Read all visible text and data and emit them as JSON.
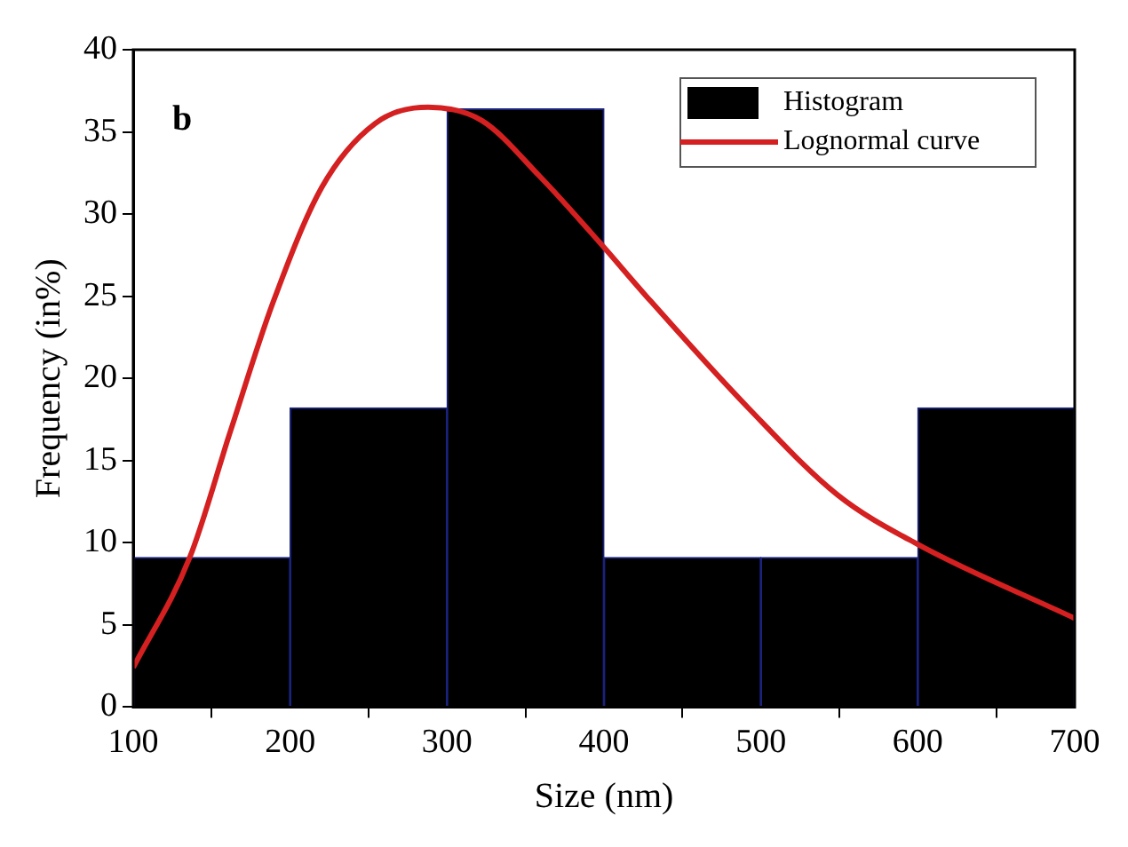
{
  "chart_data": {
    "type": "histogram",
    "xlabel": "Size (nm)",
    "ylabel": "Frequency (in%)",
    "annotations": [
      "b"
    ],
    "bins": [
      100,
      200,
      300,
      400,
      500,
      600,
      700
    ],
    "series": [
      {
        "name": "Histogram",
        "color": "#000000",
        "values": [
          9.1,
          18.2,
          36.4,
          9.1,
          9.1,
          18.2
        ]
      },
      {
        "name": "Lognormal curve",
        "type": "line",
        "color": "#d42020",
        "x": [
          100,
          136,
          162,
          189,
          220,
          254,
          288,
          322,
          359,
          397,
          427,
          492,
          549,
          600,
          700
        ],
        "values": [
          2.4,
          9.1,
          16.8,
          24.6,
          31.6,
          35.5,
          36.5,
          35.7,
          32.3,
          28.3,
          25.0,
          18.2,
          12.9,
          9.9,
          5.4
        ]
      }
    ],
    "xlim": [
      100,
      700
    ],
    "xticks": [
      100,
      200,
      300,
      400,
      500,
      600,
      700
    ],
    "ylim": [
      0,
      40
    ],
    "yticks": [
      0,
      5,
      10,
      15,
      20,
      25,
      30,
      35,
      40
    ],
    "grid": false,
    "legend": "top right",
    "marker": "none",
    "line_style": "solid"
  }
}
